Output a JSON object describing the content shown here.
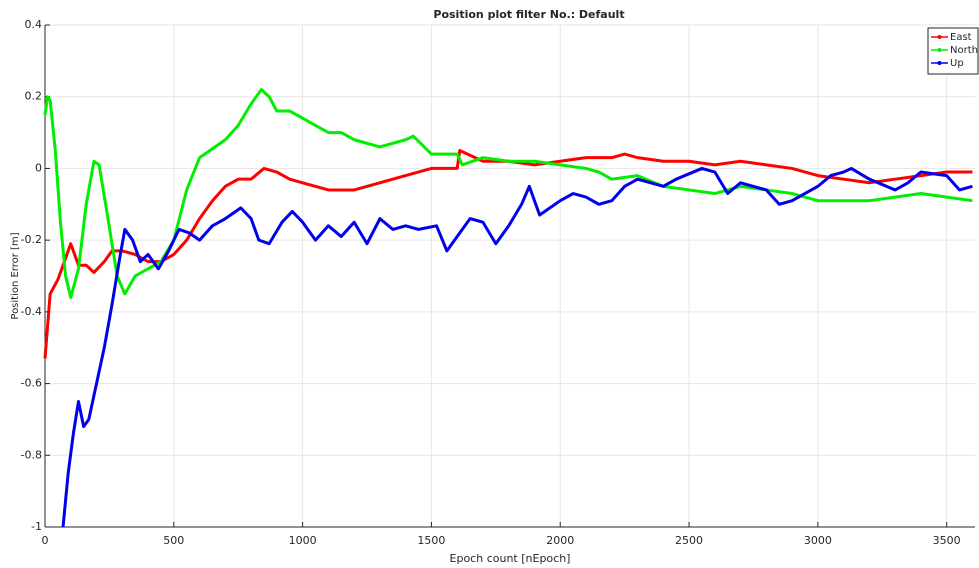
{
  "chart_data": {
    "type": "line",
    "title": "Position plot filter No.: Default",
    "x_label": "Epoch count [nEpoch]",
    "y_label": "Position Error [m]",
    "xlim": [
      0,
      3610
    ],
    "ylim": [
      -1,
      0.4
    ],
    "xticks": [
      0,
      500,
      1000,
      1500,
      2000,
      2500,
      3000,
      3500
    ],
    "yticks": [
      0.4,
      0.2,
      0,
      -0.2,
      -0.4,
      -0.6,
      -0.8,
      -1
    ],
    "grid": true,
    "legend": "top-right",
    "series": [
      {
        "name": "East",
        "color": "#ff0000",
        "x": [
          0,
          20,
          50,
          80,
          100,
          130,
          160,
          190,
          230,
          260,
          300,
          350,
          400,
          450,
          500,
          550,
          600,
          650,
          700,
          750,
          800,
          850,
          900,
          950,
          1000,
          1100,
          1200,
          1300,
          1400,
          1500,
          1600,
          1610,
          1700,
          1800,
          1900,
          2000,
          2100,
          2200,
          2250,
          2300,
          2400,
          2500,
          2600,
          2700,
          2800,
          2900,
          3000,
          3100,
          3200,
          3300,
          3400,
          3500,
          3600
        ],
        "values": [
          -0.53,
          -0.35,
          -0.31,
          -0.25,
          -0.21,
          -0.27,
          -0.27,
          -0.29,
          -0.26,
          -0.23,
          -0.23,
          -0.24,
          -0.26,
          -0.26,
          -0.24,
          -0.2,
          -0.14,
          -0.09,
          -0.05,
          -0.03,
          -0.03,
          0.0,
          -0.01,
          -0.03,
          -0.04,
          -0.06,
          -0.06,
          -0.04,
          -0.02,
          0.0,
          0.0,
          0.05,
          0.02,
          0.02,
          0.01,
          0.02,
          0.03,
          0.03,
          0.04,
          0.03,
          0.02,
          0.02,
          0.01,
          0.02,
          0.01,
          0.0,
          -0.02,
          -0.03,
          -0.04,
          -0.03,
          -0.02,
          -0.01,
          -0.01
        ]
      },
      {
        "name": "North",
        "color": "#00ee00",
        "x": [
          0,
          10,
          20,
          40,
          60,
          80,
          100,
          130,
          160,
          190,
          210,
          240,
          280,
          310,
          350,
          400,
          450,
          500,
          550,
          600,
          640,
          700,
          750,
          800,
          840,
          870,
          900,
          950,
          1000,
          1050,
          1100,
          1150,
          1200,
          1300,
          1400,
          1430,
          1500,
          1600,
          1620,
          1700,
          1800,
          1900,
          2000,
          2100,
          2150,
          2200,
          2300,
          2400,
          2500,
          2600,
          2700,
          2800,
          2900,
          3000,
          3100,
          3200,
          3300,
          3400,
          3500,
          3600
        ],
        "values": [
          0.15,
          0.2,
          0.19,
          0.05,
          -0.15,
          -0.3,
          -0.36,
          -0.28,
          -0.1,
          0.02,
          0.01,
          -0.12,
          -0.3,
          -0.35,
          -0.3,
          -0.28,
          -0.26,
          -0.2,
          -0.06,
          0.03,
          0.05,
          0.08,
          0.12,
          0.18,
          0.22,
          0.2,
          0.16,
          0.16,
          0.14,
          0.12,
          0.1,
          0.1,
          0.08,
          0.06,
          0.08,
          0.09,
          0.04,
          0.04,
          0.01,
          0.03,
          0.02,
          0.02,
          0.01,
          0.0,
          -0.01,
          -0.03,
          -0.02,
          -0.05,
          -0.06,
          -0.07,
          -0.05,
          -0.06,
          -0.07,
          -0.09,
          -0.09,
          -0.09,
          -0.08,
          -0.07,
          -0.08,
          -0.09
        ]
      },
      {
        "name": "Up",
        "color": "#0000ee",
        "x": [
          70,
          90,
          110,
          130,
          150,
          170,
          200,
          230,
          260,
          290,
          310,
          340,
          370,
          400,
          440,
          480,
          520,
          560,
          600,
          650,
          700,
          760,
          800,
          830,
          870,
          920,
          960,
          1000,
          1050,
          1100,
          1150,
          1200,
          1250,
          1300,
          1350,
          1400,
          1450,
          1520,
          1560,
          1600,
          1650,
          1700,
          1750,
          1800,
          1850,
          1880,
          1920,
          2000,
          2050,
          2100,
          2150,
          2200,
          2250,
          2300,
          2400,
          2450,
          2550,
          2600,
          2650,
          2700,
          2800,
          2850,
          2900,
          3000,
          3050,
          3100,
          3130,
          3200,
          3300,
          3350,
          3400,
          3500,
          3550,
          3600
        ],
        "values": [
          -1.0,
          -0.85,
          -0.74,
          -0.65,
          -0.72,
          -0.7,
          -0.6,
          -0.5,
          -0.38,
          -0.25,
          -0.17,
          -0.2,
          -0.26,
          -0.24,
          -0.28,
          -0.23,
          -0.17,
          -0.18,
          -0.2,
          -0.16,
          -0.14,
          -0.11,
          -0.14,
          -0.2,
          -0.21,
          -0.15,
          -0.12,
          -0.15,
          -0.2,
          -0.16,
          -0.19,
          -0.15,
          -0.21,
          -0.14,
          -0.17,
          -0.16,
          -0.17,
          -0.16,
          -0.23,
          -0.19,
          -0.14,
          -0.15,
          -0.21,
          -0.16,
          -0.1,
          -0.05,
          -0.13,
          -0.09,
          -0.07,
          -0.08,
          -0.1,
          -0.09,
          -0.05,
          -0.03,
          -0.05,
          -0.03,
          0.0,
          -0.01,
          -0.07,
          -0.04,
          -0.06,
          -0.1,
          -0.09,
          -0.05,
          -0.02,
          -0.01,
          0.0,
          -0.03,
          -0.06,
          -0.04,
          -0.01,
          -0.02,
          -0.06,
          -0.05
        ]
      }
    ]
  }
}
